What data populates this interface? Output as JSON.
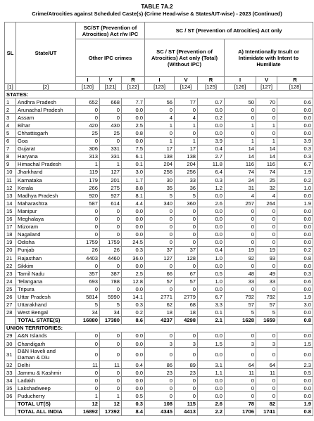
{
  "title": "TABLE 7A.2",
  "subtitle": "Crime/Atrocities against Scheduled Caste(s) (Crime Head-wise & States/UT-wise) - 2023 (Continued)",
  "header": {
    "sl": "SL",
    "state": "State/UT",
    "group1": "SC/ST (Prevention of Atrocities) Act r/w IPC",
    "group2": "SC / ST (Prevention of Atrocities) Act only",
    "sub1": "Other IPC crimes",
    "sub2": "SC / ST (Prevention of Atrocities) Act only (Total) (Without IPC)",
    "sub3": "A) Intentionally Insult or Intimidate with Intent to Humiliate",
    "ivr": [
      "I",
      "V",
      "R",
      "I",
      "V",
      "R",
      "I",
      "V",
      "R"
    ],
    "column_numbers": [
      "[1]",
      "[2]",
      "[120]",
      "[121]",
      "[122]",
      "[123]",
      "[124]",
      "[125]",
      "[126]",
      "[127]",
      "[128]"
    ]
  },
  "sections": [
    {
      "label": "STATES:",
      "rows": [
        [
          "1",
          "Andhra Pradesh",
          "652",
          "668",
          "7.7",
          "56",
          "77",
          "0.7",
          "50",
          "70",
          "0.6"
        ],
        [
          "2",
          "Arunachal Pradesh",
          "0",
          "0",
          "0.0",
          "0",
          "0",
          "0.0",
          "0",
          "0",
          "0.0"
        ],
        [
          "3",
          "Assam",
          "0",
          "0",
          "0.0",
          "4",
          "4",
          "0.2",
          "0",
          "0",
          "0.0"
        ],
        [
          "4",
          "Bihar",
          "420",
          "430",
          "2.5",
          "1",
          "1",
          "0.0",
          "1",
          "1",
          "0.0"
        ],
        [
          "5",
          "Chhattisgarh",
          "25",
          "25",
          "0.8",
          "0",
          "0",
          "0.0",
          "0",
          "0",
          "0.0"
        ],
        [
          "6",
          "Goa",
          "0",
          "0",
          "0.0",
          "1",
          "1",
          "3.9",
          "1",
          "1",
          "3.9"
        ],
        [
          "7",
          "Gujarat",
          "306",
          "331",
          "7.5",
          "17",
          "17",
          "0.4",
          "14",
          "14",
          "0.3"
        ],
        [
          "8",
          "Haryana",
          "313",
          "331",
          "6.1",
          "138",
          "138",
          "2.7",
          "14",
          "14",
          "0.3"
        ],
        [
          "9",
          "Himachal Pradesh",
          "1",
          "1",
          "0.1",
          "204",
          "204",
          "11.8",
          "116",
          "116",
          "6.7"
        ],
        [
          "10",
          "Jharkhand",
          "119",
          "127",
          "3.0",
          "256",
          "256",
          "6.4",
          "74",
          "74",
          "1.9"
        ],
        [
          "11",
          "Karnataka",
          "179",
          "201",
          "1.7",
          "30",
          "33",
          "0.3",
          "24",
          "25",
          "0.2"
        ],
        [
          "12",
          "Kerala",
          "266",
          "275",
          "8.8",
          "35",
          "36",
          "1.2",
          "31",
          "32",
          "1.0"
        ],
        [
          "13",
          "Madhya Pradesh",
          "920",
          "927",
          "8.1",
          "5",
          "5",
          "0.0",
          "4",
          "4",
          "0.0"
        ],
        [
          "14",
          "Maharashtra",
          "587",
          "614",
          "4.4",
          "340",
          "360",
          "2.6",
          "257",
          "264",
          "1.9"
        ],
        [
          "15",
          "Manipur",
          "0",
          "0",
          "0.0",
          "0",
          "0",
          "0.0",
          "0",
          "0",
          "0.0"
        ],
        [
          "16",
          "Meghalaya",
          "0",
          "0",
          "0.0",
          "0",
          "0",
          "0.0",
          "0",
          "0",
          "0.0"
        ],
        [
          "17",
          "Mizoram",
          "0",
          "0",
          "0.0",
          "0",
          "0",
          "0.0",
          "0",
          "0",
          "0.0"
        ],
        [
          "18",
          "Nagaland",
          "0",
          "0",
          "0.0",
          "0",
          "0",
          "0.0",
          "0",
          "0",
          "0.0"
        ],
        [
          "19",
          "Odisha",
          "1759",
          "1759",
          "24.5",
          "0",
          "0",
          "0.0",
          "0",
          "0",
          "0.0"
        ],
        [
          "20",
          "Punjab",
          "26",
          "26",
          "0.3",
          "37",
          "37",
          "0.4",
          "19",
          "19",
          "0.2"
        ],
        [
          "21",
          "Rajasthan",
          "4403",
          "4460",
          "36.0",
          "127",
          "128",
          "1.0",
          "92",
          "93",
          "0.8"
        ],
        [
          "22",
          "Sikkim",
          "0",
          "0",
          "0.0",
          "0",
          "0",
          "0.0",
          "0",
          "0",
          "0.0"
        ],
        [
          "23",
          "Tamil Nadu",
          "357",
          "387",
          "2.5",
          "66",
          "67",
          "0.5",
          "48",
          "49",
          "0.3"
        ],
        [
          "24",
          "Telangana",
          "693",
          "788",
          "12.8",
          "57",
          "57",
          "1.0",
          "33",
          "33",
          "0.6"
        ],
        [
          "25",
          "Tripura",
          "0",
          "0",
          "0.0",
          "0",
          "0",
          "0.0",
          "0",
          "0",
          "0.0"
        ],
        [
          "26",
          "Uttar Pradesh",
          "5814",
          "5990",
          "14.1",
          "2771",
          "2779",
          "6.7",
          "792",
          "792",
          "1.9"
        ],
        [
          "27",
          "Uttarakhand",
          "5",
          "5",
          "0.3",
          "62",
          "68",
          "3.3",
          "57",
          "57",
          "3.0"
        ],
        [
          "28",
          "West Bengal",
          "34",
          "34",
          "0.2",
          "18",
          "18",
          "0.1",
          "5",
          "5",
          "0.0"
        ]
      ],
      "total": [
        "TOTAL STATE(S)",
        "16880",
        "17380",
        "8.6",
        "4237",
        "4298",
        "2.1",
        "1628",
        "1659",
        "0.8"
      ]
    },
    {
      "label": "UNION TERRITORIES:",
      "rows": [
        [
          "29",
          "A&N Islands",
          "0",
          "0",
          "0.0",
          "0",
          "0",
          "0.0",
          "0",
          "0",
          "0.0"
        ],
        [
          "30",
          "Chandigarh",
          "0",
          "0",
          "0.0",
          "3",
          "3",
          "1.5",
          "3",
          "3",
          "1.5"
        ],
        [
          "31",
          "D&N Haveli and Daman & Diu",
          "0",
          "0",
          "0.0",
          "0",
          "0",
          "0.0",
          "0",
          "0",
          "0.0"
        ],
        [
          "32",
          "Delhi",
          "11",
          "11",
          "0.4",
          "86",
          "89",
          "3.1",
          "64",
          "64",
          "2.3"
        ],
        [
          "33",
          "Jammu & Kashmir",
          "0",
          "0",
          "0.0",
          "23",
          "23",
          "1.1",
          "11",
          "11",
          "0.5"
        ],
        [
          "34",
          "Ladakh",
          "0",
          "0",
          "0.0",
          "0",
          "0",
          "0.0",
          "0",
          "0",
          "0.0"
        ],
        [
          "35",
          "Lakshadweep",
          "0",
          "0",
          "0.0",
          "0",
          "0",
          "0.0",
          "0",
          "0",
          "0.0"
        ],
        [
          "36",
          "Puducherry",
          "1",
          "1",
          "0.5",
          "0",
          "0",
          "0.0",
          "0",
          "0",
          "0.0"
        ]
      ],
      "total": [
        "TOTAL UT(S)",
        "12",
        "12",
        "0.3",
        "108",
        "115",
        "2.6",
        "78",
        "82",
        "1.9"
      ]
    }
  ],
  "grand_total": [
    "TOTAL ALL INDIA",
    "16892",
    "17392",
    "8.4",
    "4345",
    "4413",
    "2.2",
    "1706",
    "1741",
    "0.8"
  ]
}
